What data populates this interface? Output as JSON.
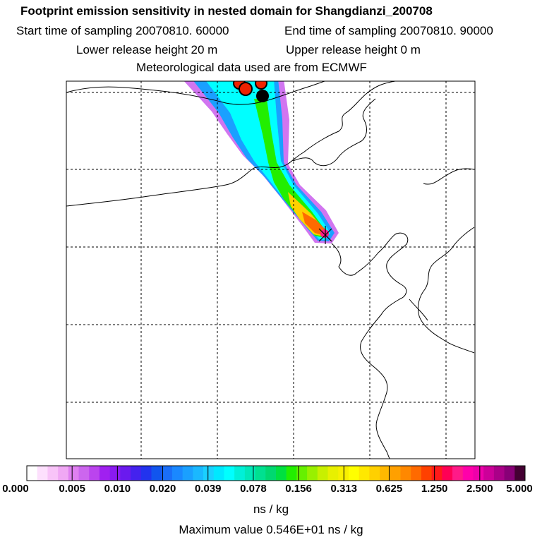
{
  "header": {
    "title": "Footprint emission sensitivity in nested domain for Shangdianzi_200708",
    "start_label": "Start time of sampling 20070810. 60000",
    "end_label": "End time of sampling 20070810. 90000",
    "lower_label": "Lower release height   20 m",
    "upper_label": "Upper release height    0 m",
    "met_label": "Meteorological data used are from ECMWF"
  },
  "legend": {
    "tick_labels": [
      "0.000",
      "0.005",
      "0.010",
      "0.020",
      "0.039",
      "0.078",
      "0.156",
      "0.313",
      "0.625",
      "1.250",
      "2.500",
      "5.000"
    ],
    "colors": [
      "#ffffff",
      "#fde0fd",
      "#f8c4f8",
      "#f0a8f4",
      "#df80f0",
      "#cc66ee",
      "#bb44ee",
      "#a020f0",
      "#8a1af0",
      "#6a1aee",
      "#4422ee",
      "#2233ee",
      "#1155ee",
      "#1a6ef8",
      "#1a88ff",
      "#1aa0ff",
      "#1ab8ff",
      "#1ad0ff",
      "#00e8ff",
      "#00ffff",
      "#00f0d8",
      "#00e8b8",
      "#00e090",
      "#00d870",
      "#00e040",
      "#22ee00",
      "#66f000",
      "#99f000",
      "#c8f000",
      "#e8f000",
      "#f8f000",
      "#ffff00",
      "#ffe800",
      "#ffd000",
      "#ffb800",
      "#ffa000",
      "#ff8800",
      "#ff6a00",
      "#ff4000",
      "#ff1a1a",
      "#ff0055",
      "#ff1a88",
      "#ff00aa",
      "#ee00aa",
      "#cc0099",
      "#aa0088",
      "#880077",
      "#440033"
    ],
    "unit": "ns / kg",
    "max_value": "Maximum value  0.546E+01 ns / kg"
  },
  "plume_colors": {
    "outer": "#cc66ee",
    "mid": "#1aa0ff",
    "core": "#00ffff",
    "inner": "#22ee00",
    "hot1": "#ffd000",
    "hot2": "#ff6a00",
    "peak": "#ff1a88",
    "marker_red": "#ee2200",
    "marker_black": "#000000"
  }
}
